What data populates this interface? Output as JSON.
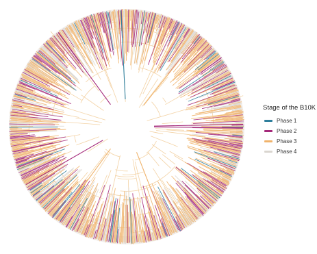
{
  "legend": {
    "title": "Stage of the B10K",
    "items": [
      {
        "label": "Phase 1",
        "color": "#2f7f9c"
      },
      {
        "label": "Phase 2",
        "color": "#a4297a"
      },
      {
        "label": "Phase 3",
        "color": "#f0b36b"
      },
      {
        "label": "Phase 4",
        "color": "#dad6d0"
      }
    ]
  },
  "tree": {
    "type": "circular-phylogeny",
    "branch_color": "#f3d2a4",
    "background_ring_color": "#eeebe7"
  }
}
